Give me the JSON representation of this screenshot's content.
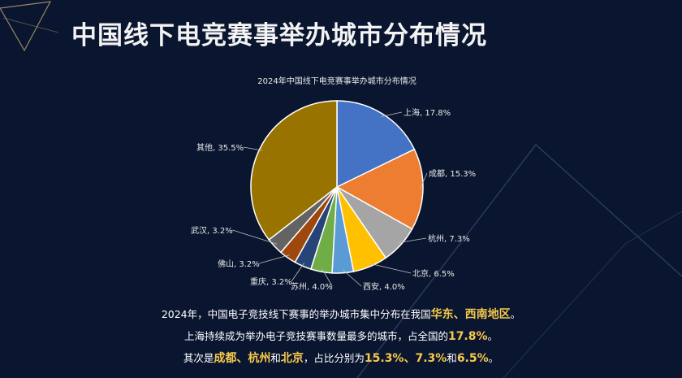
{
  "page": {
    "title": "中国线下电竞赛事举办城市分布情况"
  },
  "chart_data": {
    "type": "pie",
    "title": "2024年中国线下电竞赛事举办城市分布情况",
    "categories": [
      "上海",
      "成都",
      "杭州",
      "北京",
      "西安",
      "苏州",
      "重庆",
      "佛山",
      "武汉",
      "其他"
    ],
    "values": [
      17.8,
      15.3,
      7.3,
      6.5,
      4.0,
      4.0,
      3.2,
      3.2,
      3.2,
      35.5
    ],
    "labels": [
      "上海, 17.8%",
      "成都, 15.3%",
      "杭州, 7.3%",
      "北京, 6.5%",
      "西安, 4.0%",
      "苏州, 4.0%",
      "重庆, 3.2%",
      "佛山, 3.2%",
      "武汉, 3.2%",
      "其他, 35.5%"
    ],
    "colors": [
      "#4472c4",
      "#ed7d31",
      "#a5a5a5",
      "#ffc000",
      "#5b9bd5",
      "#70ad47",
      "#264478",
      "#9e480e",
      "#636363",
      "#997300"
    ],
    "unit": "%"
  },
  "summary": {
    "line1": {
      "text": "2024年，中国电子竞技线下赛事的举办城市集中分布在我国",
      "highlight": "华东、西南地区",
      "end": "。"
    },
    "line2": {
      "text": "上海持续成为举办电子竞技赛事数量最多的城市，占全国的",
      "highlight": "17.8%",
      "end": "。"
    },
    "line3": {
      "pre": "其次是",
      "city1": "成都",
      "sep1": "、",
      "city2": "杭州",
      "and1": "和",
      "city3": "北京",
      "mid": "，占比分别为",
      "pct1": "15.3%",
      "sep2": "、",
      "pct2": "7.3%",
      "and2": "和",
      "pct3": "6.5%",
      "end": "。"
    }
  }
}
